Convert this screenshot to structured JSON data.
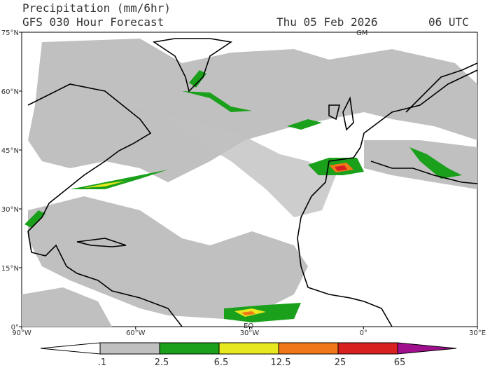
{
  "header": {
    "title": "Precipitation (mm/6hr)",
    "subtitle": "GFS 030 Hour Forecast",
    "date": "Thu 05 Feb 2026",
    "time": "06 UTC"
  },
  "map": {
    "lat_labels": [
      "75°N",
      "60°N",
      "45°N",
      "30°N",
      "15°N",
      "0°"
    ],
    "lon_labels": [
      "90°W",
      "60°W",
      "30°W",
      "0°",
      "30°E"
    ],
    "markers": [
      "GM",
      "EQ"
    ]
  },
  "colorbar": {
    "labels": [
      ".1",
      "2.5",
      "6.5",
      "12.5",
      "25",
      "65"
    ]
  }
}
